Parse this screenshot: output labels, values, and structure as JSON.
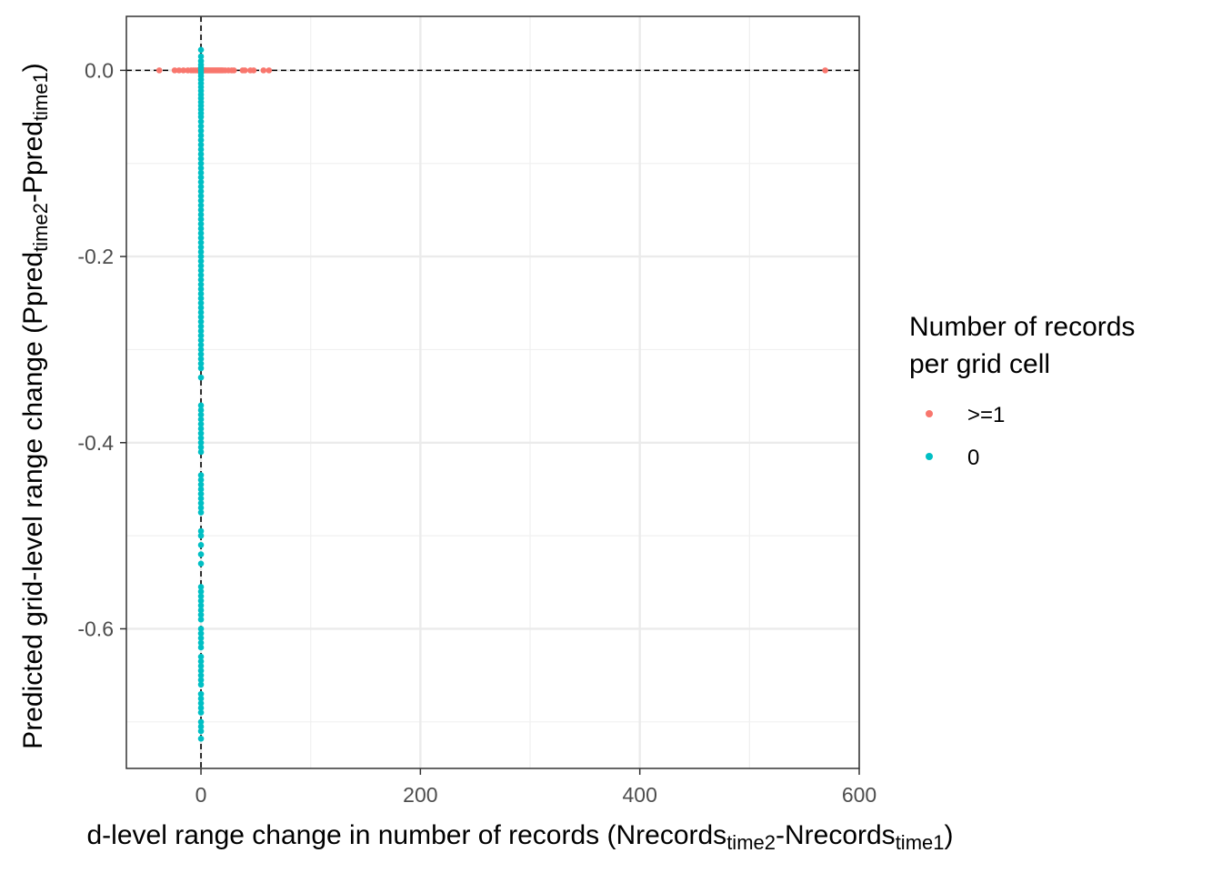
{
  "chart_data": {
    "type": "scatter",
    "xlabel_parts": [
      "d-level range change in number of records (Nrecords",
      "time2",
      "-Nrecords",
      "time1",
      ")"
    ],
    "ylabel_parts": [
      "Predicted grid-level range change (Ppred",
      "time2",
      "-Ppred",
      "time1",
      ")"
    ],
    "xlim": [
      -68,
      600
    ],
    "ylim": [
      -0.75,
      0.058
    ],
    "x_ticks": [
      0,
      200,
      400,
      600
    ],
    "x_tick_labels": [
      "0",
      "200",
      "400",
      "600"
    ],
    "y_ticks": [
      0.0,
      -0.2,
      -0.4,
      -0.6
    ],
    "y_tick_labels": [
      "0.0",
      "-0.2",
      "-0.4",
      "-0.6"
    ],
    "grid": true,
    "reference_lines": {
      "x": 0,
      "y": 0,
      "style": "dashed"
    },
    "legend": {
      "title_lines": [
        "Number of records",
        "per grid cell"
      ],
      "placement": "right"
    },
    "series": [
      {
        "name": ">=1",
        "color": "#F8766D",
        "points": [
          [
            -38,
            0
          ],
          [
            -24,
            0
          ],
          [
            -20,
            0
          ],
          [
            -16,
            0
          ],
          [
            -12,
            0
          ],
          [
            -9,
            0
          ],
          [
            -7,
            0
          ],
          [
            -5,
            0
          ],
          [
            -3,
            0
          ],
          [
            -2,
            0
          ],
          [
            -1,
            0
          ],
          [
            1,
            0
          ],
          [
            2,
            0
          ],
          [
            3,
            0
          ],
          [
            4,
            0
          ],
          [
            5,
            0
          ],
          [
            6,
            0
          ],
          [
            7,
            0
          ],
          [
            8,
            0
          ],
          [
            9,
            0
          ],
          [
            10,
            0
          ],
          [
            11,
            0
          ],
          [
            12,
            0
          ],
          [
            13,
            0
          ],
          [
            14,
            0
          ],
          [
            15,
            0
          ],
          [
            16,
            0
          ],
          [
            17,
            0
          ],
          [
            18,
            0
          ],
          [
            19,
            0
          ],
          [
            20,
            0
          ],
          [
            22,
            0
          ],
          [
            25,
            0
          ],
          [
            28,
            0
          ],
          [
            30,
            0
          ],
          [
            38,
            0
          ],
          [
            40,
            0
          ],
          [
            45,
            0
          ],
          [
            48,
            0
          ],
          [
            57,
            0
          ],
          [
            62,
            0
          ],
          [
            569,
            0
          ]
        ]
      },
      {
        "name": "0",
        "color": "#00BFC4",
        "points": [
          [
            0,
            0.022
          ],
          [
            0,
            0.015
          ],
          [
            0,
            0.01
          ],
          [
            0,
            0.006
          ],
          [
            0,
            0.003
          ],
          [
            0,
            0.0
          ],
          [
            0,
            -0.003
          ],
          [
            0,
            -0.006
          ],
          [
            0,
            -0.01
          ],
          [
            0,
            -0.014
          ],
          [
            0,
            -0.018
          ],
          [
            0,
            -0.022
          ],
          [
            0,
            -0.026
          ],
          [
            0,
            -0.03
          ],
          [
            0,
            -0.034
          ],
          [
            0,
            -0.038
          ],
          [
            0,
            -0.042
          ],
          [
            0,
            -0.046
          ],
          [
            0,
            -0.05
          ],
          [
            0,
            -0.055
          ],
          [
            0,
            -0.06
          ],
          [
            0,
            -0.065
          ],
          [
            0,
            -0.07
          ],
          [
            0,
            -0.075
          ],
          [
            0,
            -0.08
          ],
          [
            0,
            -0.085
          ],
          [
            0,
            -0.09
          ],
          [
            0,
            -0.095
          ],
          [
            0,
            -0.1
          ],
          [
            0,
            -0.105
          ],
          [
            0,
            -0.11
          ],
          [
            0,
            -0.115
          ],
          [
            0,
            -0.12
          ],
          [
            0,
            -0.125
          ],
          [
            0,
            -0.13
          ],
          [
            0,
            -0.135
          ],
          [
            0,
            -0.14
          ],
          [
            0,
            -0.145
          ],
          [
            0,
            -0.15
          ],
          [
            0,
            -0.155
          ],
          [
            0,
            -0.16
          ],
          [
            0,
            -0.165
          ],
          [
            0,
            -0.17
          ],
          [
            0,
            -0.175
          ],
          [
            0,
            -0.18
          ],
          [
            0,
            -0.185
          ],
          [
            0,
            -0.19
          ],
          [
            0,
            -0.195
          ],
          [
            0,
            -0.2
          ],
          [
            0,
            -0.205
          ],
          [
            0,
            -0.21
          ],
          [
            0,
            -0.215
          ],
          [
            0,
            -0.22
          ],
          [
            0,
            -0.225
          ],
          [
            0,
            -0.23
          ],
          [
            0,
            -0.235
          ],
          [
            0,
            -0.24
          ],
          [
            0,
            -0.245
          ],
          [
            0,
            -0.25
          ],
          [
            0,
            -0.255
          ],
          [
            0,
            -0.26
          ],
          [
            0,
            -0.265
          ],
          [
            0,
            -0.27
          ],
          [
            0,
            -0.275
          ],
          [
            0,
            -0.28
          ],
          [
            0,
            -0.285
          ],
          [
            0,
            -0.29
          ],
          [
            0,
            -0.295
          ],
          [
            0,
            -0.3
          ],
          [
            0,
            -0.305
          ],
          [
            0,
            -0.31
          ],
          [
            0,
            -0.315
          ],
          [
            0,
            -0.32
          ],
          [
            0,
            -0.33
          ],
          [
            0,
            -0.36
          ],
          [
            0,
            -0.365
          ],
          [
            0,
            -0.37
          ],
          [
            0,
            -0.375
          ],
          [
            0,
            -0.38
          ],
          [
            0,
            -0.385
          ],
          [
            0,
            -0.39
          ],
          [
            0,
            -0.395
          ],
          [
            0,
            -0.4
          ],
          [
            0,
            -0.405
          ],
          [
            0,
            -0.41
          ],
          [
            0,
            -0.435
          ],
          [
            0,
            -0.44
          ],
          [
            0,
            -0.445
          ],
          [
            0,
            -0.45
          ],
          [
            0,
            -0.455
          ],
          [
            0,
            -0.46
          ],
          [
            0,
            -0.465
          ],
          [
            0,
            -0.47
          ],
          [
            0,
            -0.475
          ],
          [
            0,
            -0.495
          ],
          [
            0,
            -0.5
          ],
          [
            0,
            -0.51
          ],
          [
            0,
            -0.52
          ],
          [
            0,
            -0.53
          ],
          [
            0,
            -0.555
          ],
          [
            0,
            -0.56
          ],
          [
            0,
            -0.565
          ],
          [
            0,
            -0.57
          ],
          [
            0,
            -0.575
          ],
          [
            0,
            -0.58
          ],
          [
            0,
            -0.585
          ],
          [
            0,
            -0.59
          ],
          [
            0,
            -0.6
          ],
          [
            0,
            -0.605
          ],
          [
            0,
            -0.61
          ],
          [
            0,
            -0.615
          ],
          [
            0,
            -0.62
          ],
          [
            0,
            -0.63
          ],
          [
            0,
            -0.635
          ],
          [
            0,
            -0.64
          ],
          [
            0,
            -0.645
          ],
          [
            0,
            -0.65
          ],
          [
            0,
            -0.655
          ],
          [
            0,
            -0.66
          ],
          [
            0,
            -0.67
          ],
          [
            0,
            -0.675
          ],
          [
            0,
            -0.68
          ],
          [
            0,
            -0.685
          ],
          [
            0,
            -0.69
          ],
          [
            0,
            -0.7
          ],
          [
            0,
            -0.705
          ],
          [
            0,
            -0.71
          ],
          [
            0,
            -0.718
          ]
        ]
      }
    ]
  }
}
